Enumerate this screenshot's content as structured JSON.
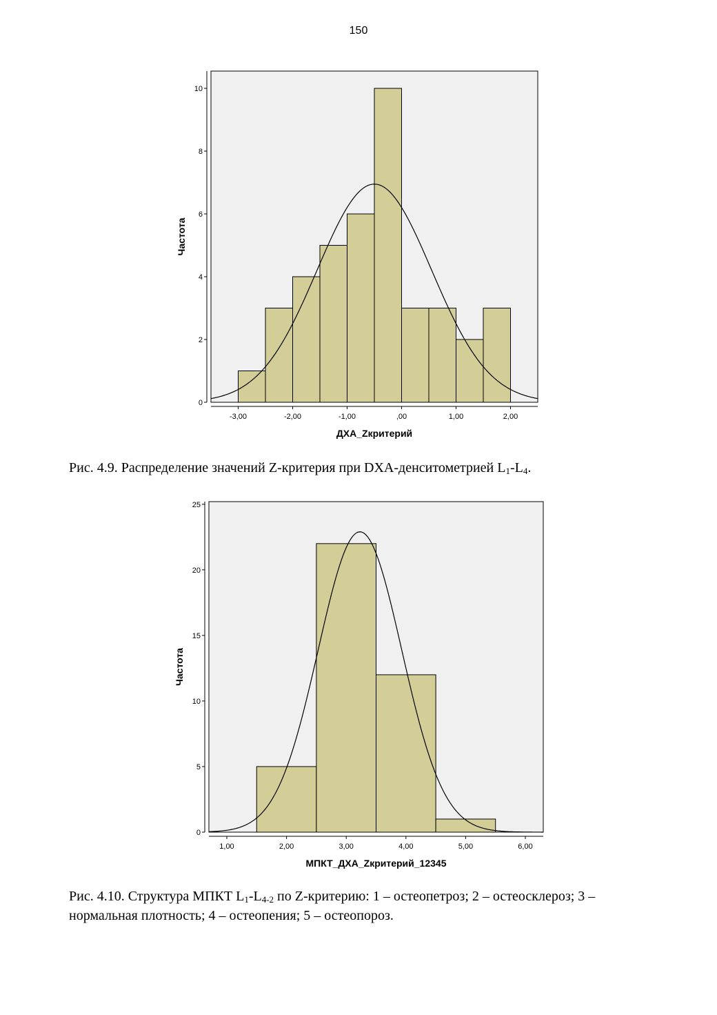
{
  "page_number": "150",
  "captions": {
    "fig1": {
      "prefix": "Рис. 4.9. Распределение значений Z-критерия при DXA-денситометрией L",
      "sub1": "1",
      "mid": "-L",
      "sub2": "4",
      "suffix": "."
    },
    "fig2": {
      "prefix": "Рис. 4.10. Структура МПКТ L",
      "sub1": "1",
      "mid": "-L",
      "sub2": "4-2",
      "suffix": " по Z-критерию: 1 – остеопетроз; 2 – остеосклероз; 3 – нормальная плотность; 4 – остеопения; 5 – остеопороз."
    }
  },
  "chart_data": [
    {
      "type": "bar",
      "subtype": "histogram",
      "xlabel": "ДХА_Zкритерий",
      "ylabel": "Частота",
      "xlim": [
        -3.5,
        2.5
      ],
      "ylim": [
        0,
        10.55
      ],
      "x_ticks": [
        -3,
        -2,
        -1,
        0,
        1,
        2
      ],
      "x_tick_labels": [
        "-3,00",
        "-2,00",
        "-1,00",
        ",00",
        "1,00",
        "2,00"
      ],
      "y_ticks": [
        0,
        2,
        4,
        6,
        8,
        10
      ],
      "y_tick_labels": [
        "0",
        "2",
        "4",
        "6",
        "8",
        "10"
      ],
      "bins": [
        {
          "from": -3.0,
          "to": -2.5,
          "count": 1
        },
        {
          "from": -2.5,
          "to": -2.0,
          "count": 3
        },
        {
          "from": -2.0,
          "to": -1.5,
          "count": 4
        },
        {
          "from": -1.5,
          "to": -1.0,
          "count": 5
        },
        {
          "from": -1.0,
          "to": -0.5,
          "count": 6
        },
        {
          "from": -0.5,
          "to": 0.0,
          "count": 10
        },
        {
          "from": 0.0,
          "to": 0.5,
          "count": 3
        },
        {
          "from": 0.5,
          "to": 1.0,
          "count": 3
        },
        {
          "from": 1.0,
          "to": 1.5,
          "count": 2
        },
        {
          "from": 1.5,
          "to": 2.0,
          "count": 3
        }
      ],
      "normal_curve": {
        "mean": -0.5,
        "sd": 1.05,
        "peak": 6.95
      },
      "bar_color": "#d3ce97",
      "plot_background": "#f0f0f0",
      "grid": false
    },
    {
      "type": "bar",
      "subtype": "histogram",
      "xlabel": "МПКТ_ДХА_Zкритерий_12345",
      "ylabel": "Частота",
      "xlim": [
        0.7,
        6.3
      ],
      "ylim": [
        0,
        25.2
      ],
      "x_ticks": [
        1,
        2,
        3,
        4,
        5,
        6
      ],
      "x_tick_labels": [
        "1,00",
        "2,00",
        "3,00",
        "4,00",
        "5,00",
        "6,00"
      ],
      "y_ticks": [
        0,
        5,
        10,
        15,
        20,
        25
      ],
      "y_tick_labels": [
        "0",
        "5",
        "10",
        "15",
        "20",
        "25"
      ],
      "bins": [
        {
          "from": 1.5,
          "to": 2.5,
          "count": 5
        },
        {
          "from": 2.5,
          "to": 3.5,
          "count": 22
        },
        {
          "from": 3.5,
          "to": 4.5,
          "count": 12
        },
        {
          "from": 4.5,
          "to": 5.5,
          "count": 1
        }
      ],
      "normal_curve": {
        "mean": 3.23,
        "sd": 0.7,
        "peak": 22.9
      },
      "bar_color": "#d3ce97",
      "plot_background": "#f0f0f0",
      "grid": false
    }
  ]
}
